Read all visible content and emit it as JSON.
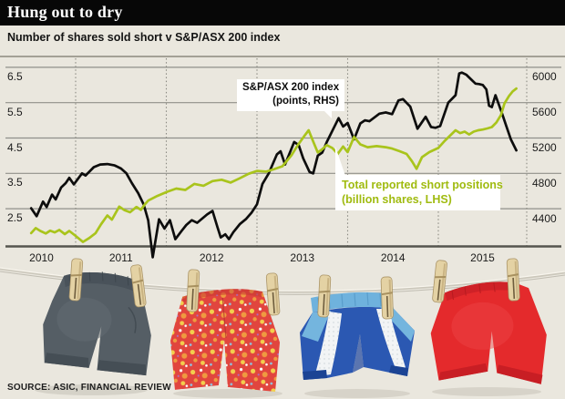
{
  "header": {
    "title": "Hung out to dry",
    "subtitle": "Number of shares sold short v S&P/ASX 200 index"
  },
  "source_note": "SOURCE: ASIC, FINANCIAL REVIEW",
  "colors": {
    "background": "#eae7de",
    "header_bg": "#070707",
    "header_text": "#ffffff",
    "grid": "#90908a",
    "axis": "#55554e",
    "series_black": "#0d0d0d",
    "series_green": "#a9c41c",
    "legend_green_text": "#a0bb10",
    "legend_bg": "#ffffff"
  },
  "chart_data": {
    "type": "line",
    "title": "Number of shares sold short v S&P/ASX 200 index",
    "x_axis": {
      "tick_labels": [
        "2010",
        "2011",
        "2012",
        "2013",
        "2014",
        "2015"
      ],
      "gridline_years": [
        2011,
        2012,
        2013,
        2014,
        2015
      ],
      "range": [
        2010.24,
        2015.97
      ],
      "grid_style": "dotted-vertical"
    },
    "left_axis": {
      "title": "billion shares",
      "ticks": [
        6.5,
        5.5,
        4.5,
        3.5,
        2.5
      ],
      "bottom_value": 1.42
    },
    "right_axis": {
      "title": "points",
      "ticks": [
        6000,
        5600,
        5200,
        4800,
        4400
      ],
      "bottom_value": 3975
    },
    "annotations": [
      {
        "line1": "S&P/ASX 200 index",
        "line2": "(points, RHS)",
        "series": "asx200"
      },
      {
        "line1": "Total reported short positions",
        "line2": "(billion shares, LHS)",
        "series": "short_positions"
      }
    ],
    "series": [
      {
        "id": "asx200",
        "name": "S&P/ASX 200 index",
        "axis": "right",
        "units": "points",
        "color": "#0d0d0d",
        "points": [
          [
            2010.51,
            4405
          ],
          [
            2010.57,
            4315
          ],
          [
            2010.64,
            4480
          ],
          [
            2010.68,
            4420
          ],
          [
            2010.74,
            4560
          ],
          [
            2010.78,
            4505
          ],
          [
            2010.84,
            4640
          ],
          [
            2010.89,
            4690
          ],
          [
            2010.93,
            4750
          ],
          [
            2010.98,
            4675
          ],
          [
            2011.07,
            4800
          ],
          [
            2011.11,
            4775
          ],
          [
            2011.2,
            4870
          ],
          [
            2011.27,
            4900
          ],
          [
            2011.35,
            4905
          ],
          [
            2011.43,
            4890
          ],
          [
            2011.5,
            4855
          ],
          [
            2011.56,
            4800
          ],
          [
            2011.62,
            4690
          ],
          [
            2011.69,
            4575
          ],
          [
            2011.75,
            4450
          ],
          [
            2011.8,
            4270
          ],
          [
            2011.85,
            3850
          ],
          [
            2011.92,
            4280
          ],
          [
            2011.98,
            4175
          ],
          [
            2012.04,
            4270
          ],
          [
            2012.1,
            4055
          ],
          [
            2012.17,
            4150
          ],
          [
            2012.22,
            4215
          ],
          [
            2012.28,
            4270
          ],
          [
            2012.34,
            4240
          ],
          [
            2012.45,
            4335
          ],
          [
            2012.51,
            4375
          ],
          [
            2012.56,
            4205
          ],
          [
            2012.6,
            4075
          ],
          [
            2012.65,
            4110
          ],
          [
            2012.69,
            4055
          ],
          [
            2012.74,
            4135
          ],
          [
            2012.81,
            4225
          ],
          [
            2012.88,
            4285
          ],
          [
            2012.94,
            4355
          ],
          [
            2013.0,
            4450
          ],
          [
            2013.06,
            4680
          ],
          [
            2013.13,
            4800
          ],
          [
            2013.22,
            5015
          ],
          [
            2013.26,
            5050
          ],
          [
            2013.31,
            4900
          ],
          [
            2013.41,
            5155
          ],
          [
            2013.46,
            5120
          ],
          [
            2013.51,
            4970
          ],
          [
            2013.58,
            4815
          ],
          [
            2013.62,
            4800
          ],
          [
            2013.67,
            5000
          ],
          [
            2013.72,
            5035
          ],
          [
            2013.77,
            5155
          ],
          [
            2013.9,
            5425
          ],
          [
            2013.95,
            5330
          ],
          [
            2014.0,
            5370
          ],
          [
            2014.07,
            5185
          ],
          [
            2014.14,
            5365
          ],
          [
            2014.19,
            5400
          ],
          [
            2014.24,
            5390
          ],
          [
            2014.35,
            5475
          ],
          [
            2014.42,
            5490
          ],
          [
            2014.49,
            5470
          ],
          [
            2014.56,
            5625
          ],
          [
            2014.61,
            5640
          ],
          [
            2014.69,
            5555
          ],
          [
            2014.77,
            5305
          ],
          [
            2014.86,
            5440
          ],
          [
            2014.92,
            5325
          ],
          [
            2014.97,
            5315
          ],
          [
            2015.02,
            5335
          ],
          [
            2015.11,
            5600
          ],
          [
            2015.19,
            5685
          ],
          [
            2015.23,
            5930
          ],
          [
            2015.26,
            5940
          ],
          [
            2015.31,
            5915
          ],
          [
            2015.36,
            5865
          ],
          [
            2015.41,
            5815
          ],
          [
            2015.45,
            5810
          ],
          [
            2015.49,
            5800
          ],
          [
            2015.53,
            5750
          ],
          [
            2015.56,
            5565
          ],
          [
            2015.59,
            5550
          ],
          [
            2015.63,
            5685
          ],
          [
            2015.7,
            5485
          ],
          [
            2015.75,
            5335
          ],
          [
            2015.8,
            5185
          ],
          [
            2015.86,
            5060
          ]
        ]
      },
      {
        "id": "short_positions",
        "name": "Total reported short positions",
        "axis": "left",
        "units": "billion shares",
        "color": "#a9c41c",
        "points": [
          [
            2010.51,
            1.81
          ],
          [
            2010.56,
            1.95
          ],
          [
            2010.61,
            1.87
          ],
          [
            2010.67,
            1.8
          ],
          [
            2010.72,
            1.88
          ],
          [
            2010.77,
            1.83
          ],
          [
            2010.82,
            1.9
          ],
          [
            2010.88,
            1.78
          ],
          [
            2010.93,
            1.87
          ],
          [
            2011.0,
            1.73
          ],
          [
            2011.08,
            1.56
          ],
          [
            2011.15,
            1.67
          ],
          [
            2011.22,
            1.81
          ],
          [
            2011.28,
            2.06
          ],
          [
            2011.35,
            2.31
          ],
          [
            2011.4,
            2.19
          ],
          [
            2011.48,
            2.56
          ],
          [
            2011.54,
            2.46
          ],
          [
            2011.6,
            2.4
          ],
          [
            2011.67,
            2.55
          ],
          [
            2011.72,
            2.47
          ],
          [
            2011.76,
            2.61
          ],
          [
            2011.8,
            2.73
          ],
          [
            2011.9,
            2.86
          ],
          [
            2012.01,
            2.98
          ],
          [
            2012.11,
            3.07
          ],
          [
            2012.21,
            3.03
          ],
          [
            2012.31,
            3.2
          ],
          [
            2012.41,
            3.15
          ],
          [
            2012.51,
            3.28
          ],
          [
            2012.61,
            3.32
          ],
          [
            2012.71,
            3.24
          ],
          [
            2012.81,
            3.36
          ],
          [
            2012.91,
            3.49
          ],
          [
            2013.0,
            3.57
          ],
          [
            2013.1,
            3.55
          ],
          [
            2013.18,
            3.61
          ],
          [
            2013.28,
            3.7
          ],
          [
            2013.38,
            4.01
          ],
          [
            2013.45,
            4.3
          ],
          [
            2013.52,
            4.55
          ],
          [
            2013.57,
            4.72
          ],
          [
            2013.62,
            4.4
          ],
          [
            2013.67,
            4.09
          ],
          [
            2013.72,
            4.18
          ],
          [
            2013.77,
            4.3
          ],
          [
            2013.83,
            4.22
          ],
          [
            2013.89,
            4.05
          ],
          [
            2013.95,
            4.26
          ],
          [
            2014.0,
            4.1
          ],
          [
            2014.07,
            4.53
          ],
          [
            2014.14,
            4.32
          ],
          [
            2014.22,
            4.24
          ],
          [
            2014.32,
            4.27
          ],
          [
            2014.42,
            4.24
          ],
          [
            2014.49,
            4.2
          ],
          [
            2014.57,
            4.13
          ],
          [
            2014.65,
            4.05
          ],
          [
            2014.71,
            3.84
          ],
          [
            2014.76,
            3.63
          ],
          [
            2014.82,
            3.96
          ],
          [
            2014.9,
            4.1
          ],
          [
            2015.0,
            4.22
          ],
          [
            2015.07,
            4.42
          ],
          [
            2015.19,
            4.72
          ],
          [
            2015.24,
            4.64
          ],
          [
            2015.29,
            4.68
          ],
          [
            2015.34,
            4.6
          ],
          [
            2015.39,
            4.68
          ],
          [
            2015.44,
            4.72
          ],
          [
            2015.49,
            4.74
          ],
          [
            2015.54,
            4.77
          ],
          [
            2015.59,
            4.81
          ],
          [
            2015.64,
            4.94
          ],
          [
            2015.69,
            5.15
          ],
          [
            2015.73,
            5.48
          ],
          [
            2015.78,
            5.69
          ],
          [
            2015.82,
            5.82
          ],
          [
            2015.86,
            5.9
          ]
        ]
      }
    ]
  },
  "illustration": {
    "description": "Four pairs of children's shorts pegged to a sagging clothesline",
    "items": [
      "grey fleece shorts",
      "red floral shorts",
      "blue and white sport shorts",
      "red shorts"
    ],
    "clothespin_count": 8
  }
}
